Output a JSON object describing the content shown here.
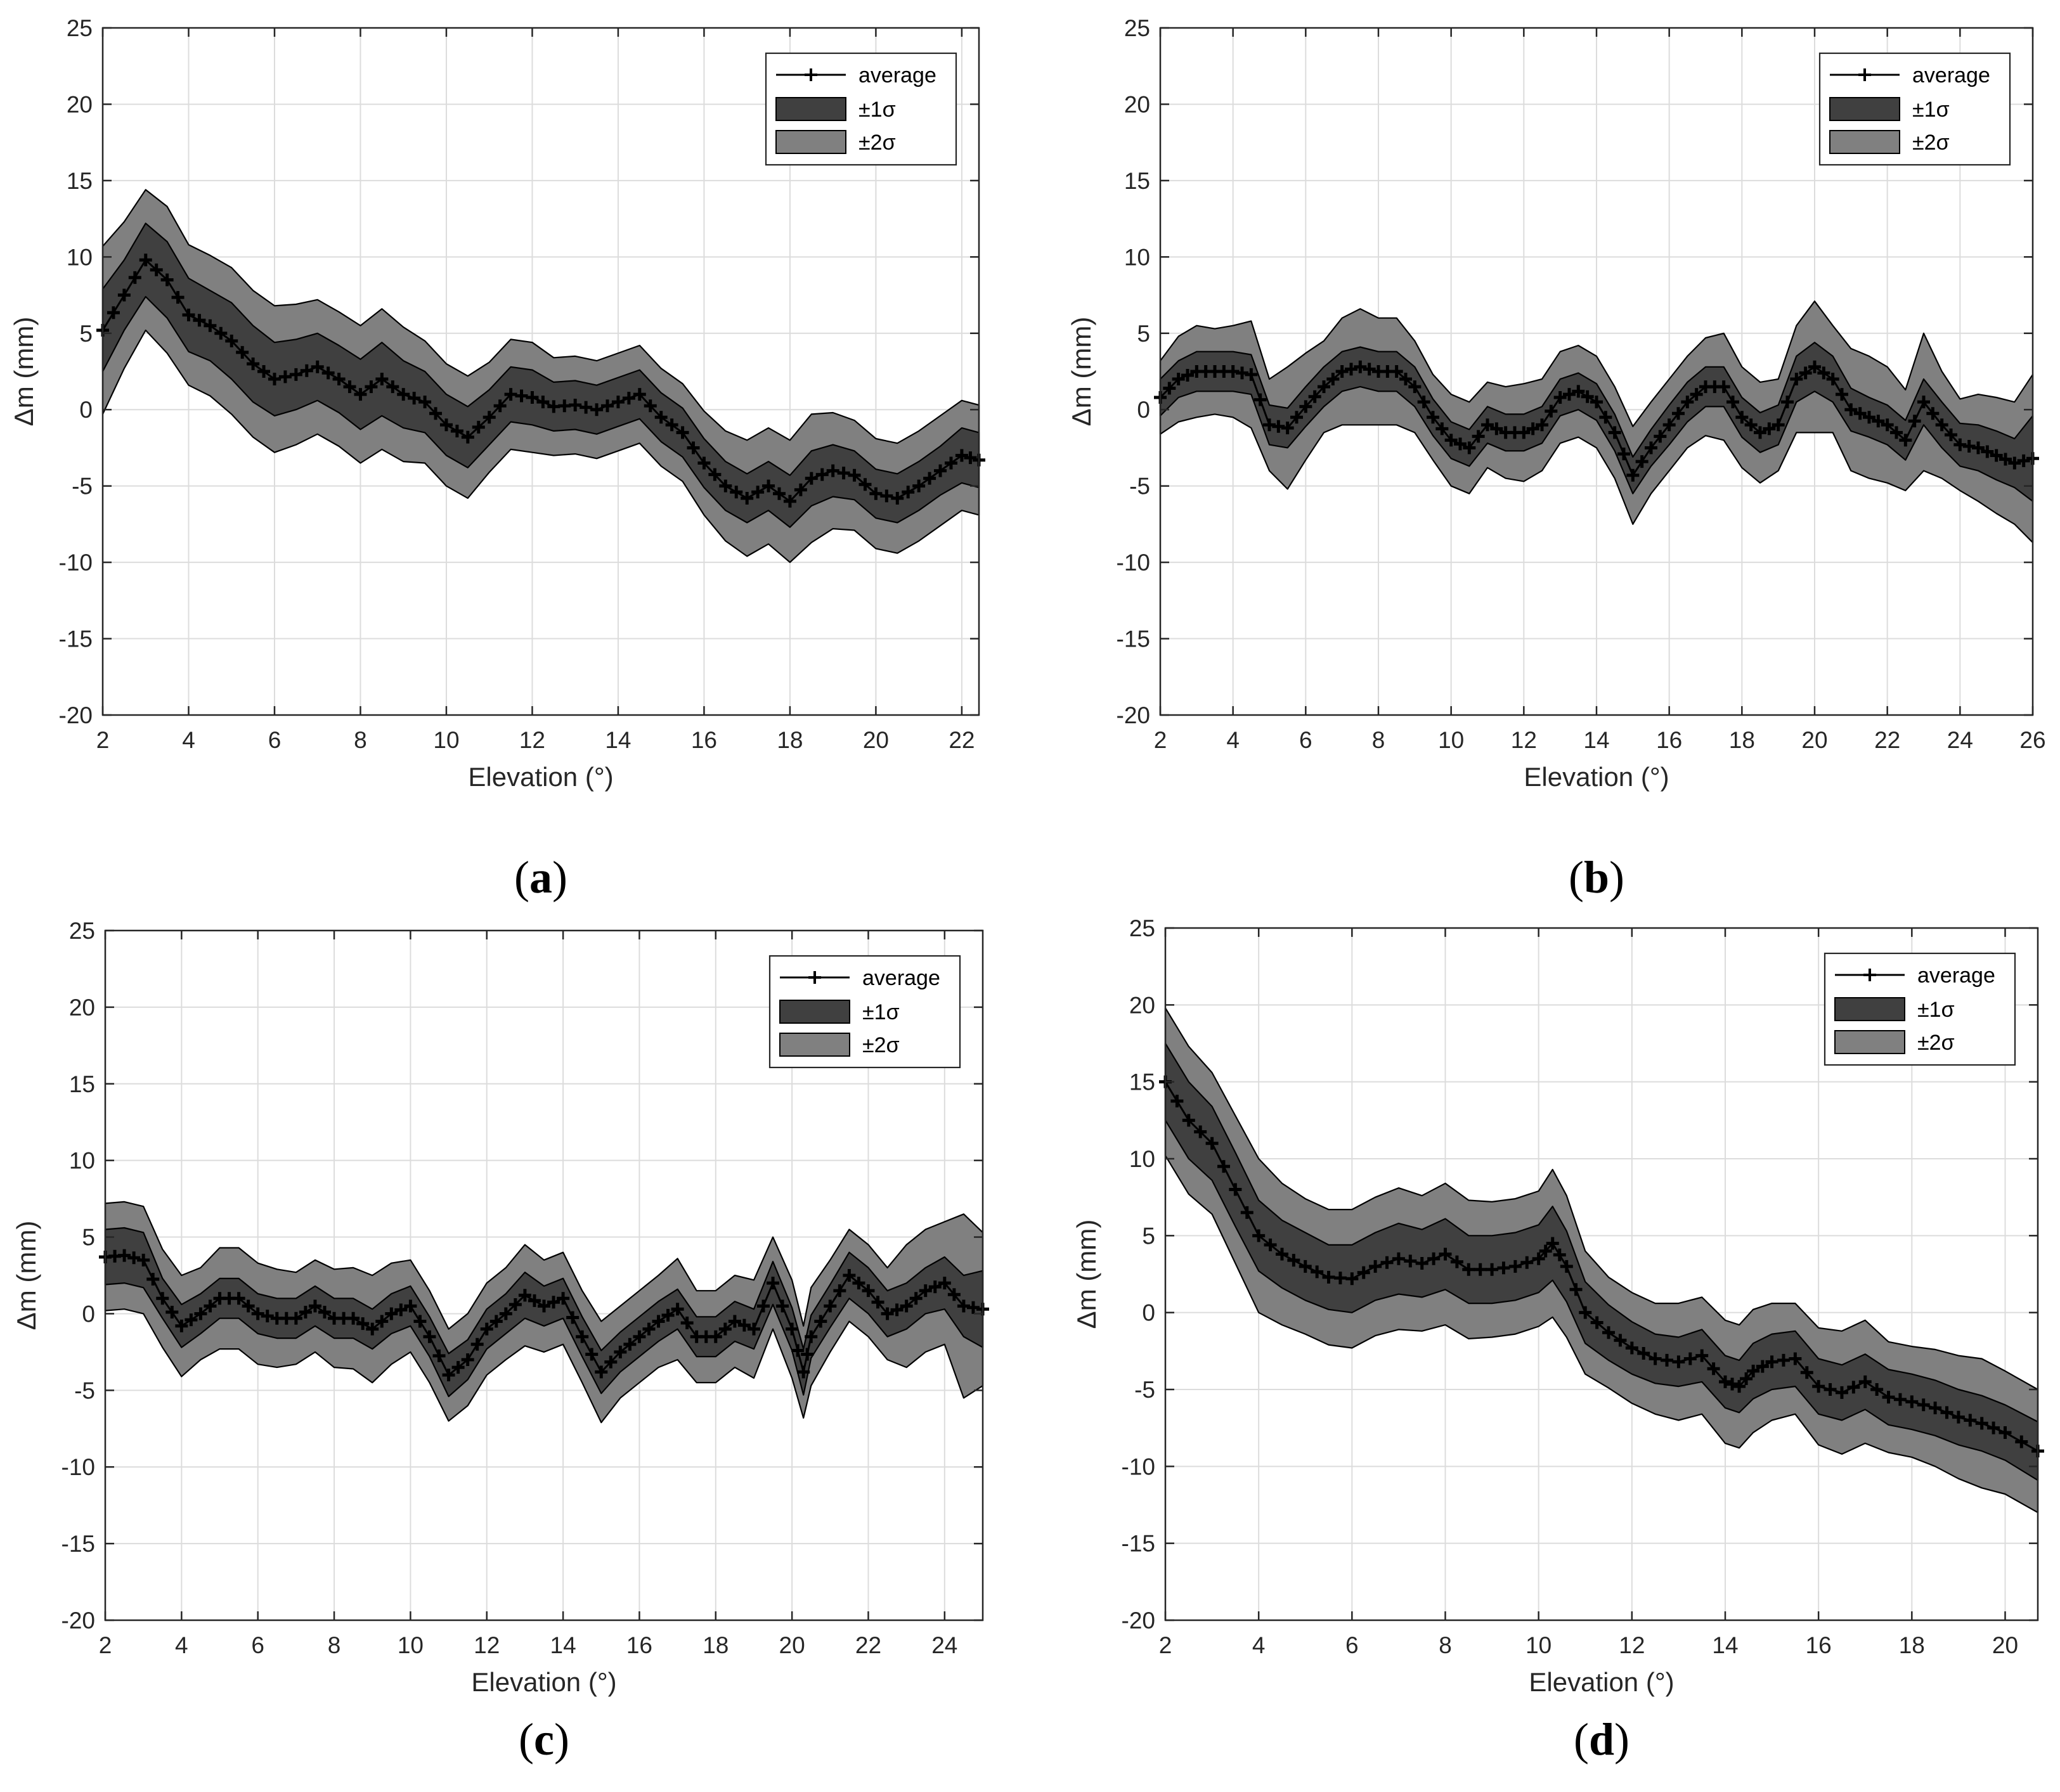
{
  "figure": {
    "panels_layout": "2x2 grid"
  },
  "chart_data": [
    {
      "panel": "a",
      "caption_letter": "a",
      "type": "area",
      "xlabel": "Elevation (°)",
      "ylabel": "Δm (mm)",
      "xlim": [
        2,
        22.4
      ],
      "ylim": [
        -20,
        25
      ],
      "xticks": [
        2,
        4,
        6,
        8,
        10,
        12,
        14,
        16,
        18,
        20,
        22
      ],
      "yticks": [
        -20,
        -15,
        -10,
        -5,
        0,
        5,
        10,
        15,
        20,
        25
      ],
      "grid": true,
      "legend_position": "top-right",
      "legend": {
        "average": "average",
        "sigma1": "±1σ",
        "sigma2": "±2σ"
      },
      "x": [
        2,
        2.5,
        3,
        3.5,
        4,
        4.5,
        5,
        5.5,
        6,
        6.5,
        7,
        7.5,
        8,
        8.5,
        9,
        9.5,
        10,
        10.5,
        11,
        11.5,
        12,
        12.5,
        13,
        13.5,
        14,
        14.5,
        15,
        15.5,
        16,
        16.5,
        17,
        17.5,
        18,
        18.5,
        19,
        19.5,
        20,
        20.5,
        21,
        21.5,
        22,
        22.4
      ],
      "average": [
        5.2,
        7.5,
        9.8,
        8.5,
        6.2,
        5.5,
        4.5,
        3.0,
        2.0,
        2.3,
        2.8,
        2.0,
        1.0,
        2.0,
        1.0,
        0.5,
        -1.0,
        -1.8,
        -0.5,
        1.0,
        0.8,
        0.2,
        0.3,
        0.0,
        0.5,
        1.0,
        -0.5,
        -1.5,
        -3.5,
        -5.0,
        -5.8,
        -5.0,
        -6.0,
        -4.5,
        -4.0,
        -4.3,
        -5.5,
        -5.8,
        -5.0,
        -4.0,
        -3.0,
        -3.3
      ],
      "sigma1": [
        2.7,
        2.3,
        2.4,
        2.5,
        2.4,
        2.3,
        2.5,
        2.5,
        2.4,
        2.3,
        2.2,
        2.2,
        2.3,
        2.4,
        2.2,
        2.0,
        2.0,
        2.0,
        1.8,
        1.8,
        1.8,
        1.6,
        1.6,
        1.6,
        1.6,
        1.6,
        1.6,
        1.6,
        1.6,
        1.6,
        1.6,
        1.6,
        1.7,
        1.8,
        1.7,
        1.6,
        1.6,
        1.6,
        1.6,
        1.6,
        1.8,
        1.8
      ],
      "sigma2": [
        5.5,
        4.8,
        4.6,
        4.8,
        4.6,
        4.6,
        4.8,
        4.8,
        4.8,
        4.6,
        4.4,
        4.4,
        4.5,
        4.6,
        4.4,
        4.0,
        4.0,
        4.0,
        3.6,
        3.6,
        3.6,
        3.2,
        3.2,
        3.2,
        3.2,
        3.2,
        3.2,
        3.2,
        3.4,
        3.6,
        3.8,
        3.8,
        4.0,
        4.2,
        3.8,
        3.6,
        3.6,
        3.6,
        3.6,
        3.6,
        3.6,
        3.6
      ]
    },
    {
      "panel": "b",
      "caption_letter": "b",
      "type": "area",
      "xlabel": "Elevation (°)",
      "ylabel": "Δm (mm)",
      "xlim": [
        2,
        26
      ],
      "ylim": [
        -20,
        25
      ],
      "xticks": [
        2,
        4,
        6,
        8,
        10,
        12,
        14,
        16,
        18,
        20,
        22,
        24,
        26
      ],
      "yticks": [
        -20,
        -15,
        -10,
        -5,
        0,
        5,
        10,
        15,
        20,
        25
      ],
      "grid": true,
      "legend_position": "top-right",
      "legend": {
        "average": "average",
        "sigma1": "±1σ",
        "sigma2": "±2σ"
      },
      "x": [
        2,
        2.5,
        3,
        3.5,
        4,
        4.5,
        5,
        5.5,
        6,
        6.5,
        7,
        7.5,
        8,
        8.5,
        9,
        9.5,
        10,
        10.5,
        11,
        11.5,
        12,
        12.5,
        13,
        13.5,
        14,
        14.5,
        15,
        15.5,
        16,
        16.5,
        17,
        17.5,
        18,
        18.5,
        19,
        19.5,
        20,
        20.5,
        21,
        21.5,
        22,
        22.5,
        23,
        23.5,
        24,
        24.5,
        25,
        25.5,
        26
      ],
      "average": [
        0.8,
        2.0,
        2.5,
        2.5,
        2.5,
        2.3,
        -1.0,
        -1.2,
        0.2,
        1.5,
        2.5,
        2.8,
        2.5,
        2.5,
        1.5,
        -0.5,
        -2.0,
        -2.5,
        -1.0,
        -1.5,
        -1.5,
        -1.0,
        0.8,
        1.2,
        0.5,
        -1.5,
        -4.3,
        -2.5,
        -1.0,
        0.5,
        1.5,
        1.5,
        -0.5,
        -1.5,
        -1.0,
        2.0,
        2.8,
        2.0,
        0.0,
        -0.5,
        -1.0,
        -2.0,
        0.5,
        -1.0,
        -2.3,
        -2.5,
        -3.0,
        -3.5,
        -3.2
      ],
      "sigma1": [
        1.2,
        1.2,
        1.3,
        1.3,
        1.3,
        1.3,
        1.3,
        1.3,
        1.3,
        1.3,
        1.3,
        1.3,
        1.3,
        1.3,
        1.3,
        1.2,
        1.2,
        1.2,
        1.2,
        1.2,
        1.2,
        1.2,
        1.2,
        1.2,
        1.2,
        1.2,
        1.2,
        1.2,
        1.3,
        1.3,
        1.3,
        1.3,
        1.3,
        1.3,
        1.3,
        1.5,
        1.6,
        1.5,
        1.4,
        1.3,
        1.3,
        1.3,
        1.5,
        1.5,
        1.4,
        1.5,
        1.6,
        1.6,
        2.8
      ],
      "sigma2": [
        2.4,
        2.8,
        3.0,
        2.8,
        3.0,
        3.5,
        3.0,
        4.0,
        3.5,
        3.0,
        3.5,
        3.8,
        3.5,
        3.5,
        3.0,
        2.8,
        3.0,
        3.0,
        2.8,
        3.0,
        3.2,
        3.0,
        3.0,
        3.0,
        3.0,
        3.0,
        3.2,
        3.0,
        3.0,
        3.0,
        3.2,
        3.5,
        3.3,
        3.3,
        3.0,
        3.5,
        4.3,
        3.5,
        4.0,
        4.0,
        3.8,
        3.3,
        4.5,
        3.5,
        3.0,
        3.5,
        3.8,
        4.0,
        5.5
      ]
    },
    {
      "panel": "c",
      "caption_letter": "c",
      "type": "area",
      "xlabel": "Elevation (°)",
      "ylabel": "Δm (mm)",
      "xlim": [
        2,
        25
      ],
      "ylim": [
        -20,
        25
      ],
      "xticks": [
        2,
        4,
        6,
        8,
        10,
        12,
        14,
        16,
        18,
        20,
        22,
        24
      ],
      "yticks": [
        -20,
        -15,
        -10,
        -5,
        0,
        5,
        10,
        15,
        20,
        25
      ],
      "grid": true,
      "legend_position": "top-right",
      "legend": {
        "average": "average",
        "sigma1": "±1σ",
        "sigma2": "±2σ"
      },
      "x": [
        2,
        2.5,
        3,
        3.5,
        4,
        4.5,
        5,
        5.5,
        6,
        6.5,
        7,
        7.5,
        8,
        8.5,
        9,
        9.5,
        10,
        10.5,
        11,
        11.5,
        12,
        12.5,
        13,
        13.5,
        14,
        14.5,
        15,
        15.5,
        16,
        16.5,
        17,
        17.5,
        18,
        18.5,
        19,
        19.5,
        20,
        20.3,
        20.5,
        21,
        21.5,
        22,
        22.5,
        23,
        23.5,
        24,
        24.5,
        25
      ],
      "average": [
        3.7,
        3.8,
        3.5,
        1.0,
        -0.8,
        0.0,
        1.0,
        1.0,
        0.0,
        -0.3,
        -0.3,
        0.5,
        -0.3,
        -0.3,
        -1.0,
        0.0,
        0.5,
        -1.5,
        -4.0,
        -3.0,
        -1.0,
        0.0,
        1.2,
        0.5,
        1.0,
        -1.5,
        -3.8,
        -2.5,
        -1.5,
        -0.5,
        0.3,
        -1.5,
        -1.5,
        -0.5,
        -1.0,
        2.0,
        -1.0,
        -3.8,
        -1.5,
        0.5,
        2.5,
        1.5,
        0.0,
        0.5,
        1.5,
        2.0,
        0.5,
        0.3
      ],
      "sigma1": [
        1.8,
        1.8,
        1.8,
        1.3,
        1.4,
        1.3,
        1.3,
        1.3,
        1.3,
        1.3,
        1.3,
        1.3,
        1.3,
        1.3,
        1.3,
        1.3,
        1.3,
        1.3,
        1.4,
        1.3,
        1.3,
        1.3,
        1.5,
        1.3,
        1.3,
        1.3,
        1.4,
        1.3,
        1.3,
        1.3,
        1.3,
        1.3,
        1.3,
        1.3,
        1.3,
        1.4,
        1.4,
        1.5,
        1.4,
        1.4,
        1.5,
        1.5,
        1.5,
        1.5,
        1.5,
        1.7,
        2.0,
        2.5
      ],
      "sigma2": [
        3.5,
        3.5,
        3.5,
        3.2,
        3.3,
        3.0,
        3.3,
        3.3,
        3.3,
        3.2,
        3.0,
        3.0,
        3.2,
        3.3,
        3.5,
        3.3,
        3.0,
        3.0,
        3.0,
        3.0,
        3.0,
        3.0,
        3.3,
        3.0,
        3.0,
        3.0,
        3.3,
        3.0,
        3.0,
        3.0,
        3.3,
        3.0,
        3.0,
        3.0,
        3.2,
        3.0,
        3.2,
        3.0,
        3.2,
        3.0,
        3.0,
        3.0,
        3.0,
        4.0,
        4.0,
        4.0,
        6.0,
        5.0
      ]
    },
    {
      "panel": "d",
      "caption_letter": "d",
      "type": "area",
      "xlabel": "Elevation (°)",
      "ylabel": "Δm (mm)",
      "xlim": [
        2,
        20.7
      ],
      "ylim": [
        -20,
        25
      ],
      "xticks": [
        2,
        4,
        6,
        8,
        10,
        12,
        14,
        16,
        18,
        20
      ],
      "yticks": [
        -20,
        -15,
        -10,
        -5,
        0,
        5,
        10,
        15,
        20,
        25
      ],
      "grid": true,
      "legend_position": "top-right",
      "legend": {
        "average": "average",
        "sigma1": "±1σ",
        "sigma2": "±2σ"
      },
      "x": [
        2,
        2.5,
        3,
        3.5,
        4,
        4.5,
        5,
        5.5,
        6,
        6.5,
        7,
        7.5,
        8,
        8.5,
        9,
        9.5,
        10,
        10.3,
        10.6,
        11,
        11.5,
        12,
        12.5,
        13,
        13.5,
        14,
        14.3,
        14.6,
        15,
        15.5,
        16,
        16.5,
        17,
        17.5,
        18,
        18.5,
        19,
        19.5,
        20,
        20.7
      ],
      "average": [
        15.0,
        12.5,
        11.0,
        8.0,
        5.0,
        3.8,
        3.0,
        2.3,
        2.2,
        3.0,
        3.5,
        3.2,
        3.8,
        2.8,
        2.8,
        3.0,
        3.5,
        4.5,
        3.0,
        0.0,
        -1.3,
        -2.3,
        -3.0,
        -3.2,
        -2.8,
        -4.5,
        -4.8,
        -3.8,
        -3.2,
        -3.0,
        -4.8,
        -5.2,
        -4.5,
        -5.5,
        -5.8,
        -6.2,
        -6.8,
        -7.2,
        -7.8,
        -9.0
      ],
      "sigma1": [
        2.5,
        2.5,
        2.4,
        2.4,
        2.3,
        2.2,
        2.2,
        2.1,
        2.2,
        2.2,
        2.3,
        2.2,
        2.3,
        2.2,
        2.2,
        2.2,
        2.2,
        2.4,
        2.3,
        2.0,
        1.8,
        1.7,
        1.6,
        1.6,
        1.7,
        1.7,
        1.7,
        1.8,
        1.8,
        1.8,
        1.8,
        1.8,
        1.8,
        1.8,
        1.8,
        1.8,
        1.8,
        1.8,
        1.8,
        1.9
      ],
      "sigma2": [
        4.8,
        4.8,
        4.6,
        4.8,
        5.0,
        4.6,
        4.4,
        4.4,
        4.5,
        4.5,
        4.6,
        4.4,
        4.6,
        4.5,
        4.4,
        4.4,
        4.4,
        4.8,
        4.6,
        4.0,
        3.6,
        3.6,
        3.6,
        3.8,
        3.8,
        4.0,
        4.0,
        4.0,
        3.8,
        3.6,
        3.8,
        4.0,
        4.0,
        3.6,
        3.6,
        3.8,
        4.0,
        4.2,
        4.0,
        4.0
      ]
    }
  ]
}
